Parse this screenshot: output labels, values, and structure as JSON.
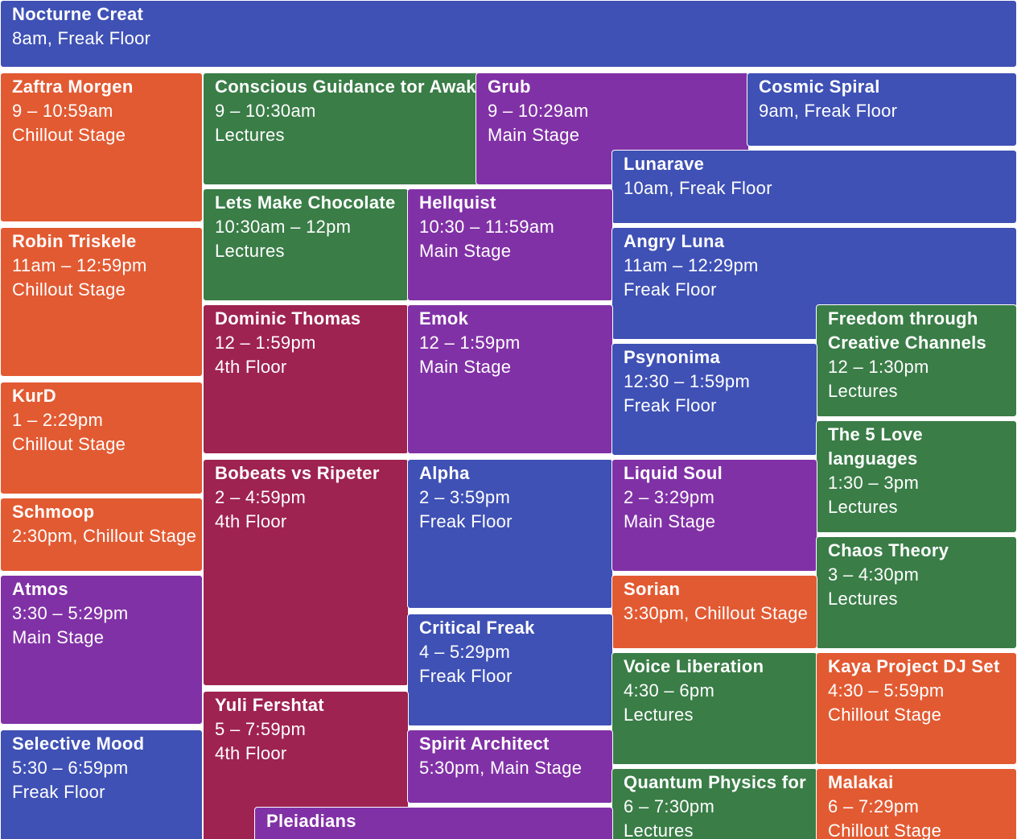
{
  "colors": {
    "freak_floor": "#3f51b5",
    "chillout_stage": "#e25a32",
    "lectures": "#3a7d47",
    "main_stage": "#8131a6",
    "fourth_floor": "#9e2350"
  },
  "events": {
    "nocturne": {
      "title": "Nocturne Creat",
      "line1": "8am, Freak Floor"
    },
    "zaftra": {
      "title": "Zaftra Morgen",
      "line1": "9 – 10:59am",
      "line2": "Chillout Stage"
    },
    "conscious": {
      "title": "Conscious Guidance tor Awak",
      "line1": "9 – 10:30am",
      "line2": "Lectures"
    },
    "grub": {
      "title": "Grub",
      "line1": "9 – 10:29am",
      "line2": "Main Stage"
    },
    "cosmic": {
      "title": "Cosmic Spiral",
      "line1": "9am, Freak Floor"
    },
    "lunarave": {
      "title": "Lunarave",
      "line1": "10am, Freak Floor"
    },
    "chocolate": {
      "title": "Lets Make Chocolate",
      "line1": "10:30am – 12pm",
      "line2": "Lectures"
    },
    "hellquist": {
      "title": "Hellquist",
      "line1": "10:30 – 11:59am",
      "line2": "Main Stage"
    },
    "robin": {
      "title": "Robin Triskele",
      "line1": "11am – 12:59pm",
      "line2": "Chillout Stage"
    },
    "angry_luna": {
      "title": "Angry Luna",
      "line1": "11am – 12:29pm",
      "line2": "Freak Floor"
    },
    "dominic": {
      "title": "Dominic Thomas",
      "line1": "12 – 1:59pm",
      "line2": "4th Floor"
    },
    "emok": {
      "title": "Emok",
      "line1": "12 – 1:59pm",
      "line2": "Main Stage"
    },
    "freedom": {
      "title": "Freedom through Creative Channels",
      "line1": "12 – 1:30pm",
      "line2": "Lectures"
    },
    "psynonima": {
      "title": "Psynonima",
      "line1": "12:30 – 1:59pm",
      "line2": "Freak Floor"
    },
    "kurd": {
      "title": "KurD",
      "line1": "1 – 2:29pm",
      "line2": "Chillout Stage"
    },
    "love_languages": {
      "title": "The 5 Love languages",
      "line1": "1:30 – 3pm",
      "line2": "Lectures"
    },
    "bobeats": {
      "title": "Bobeats vs Ripeter",
      "line1": "2 – 4:59pm",
      "line2": "4th Floor"
    },
    "alpha": {
      "title": "Alpha",
      "line1": "2 – 3:59pm",
      "line2": "Freak Floor"
    },
    "liquid_soul": {
      "title": "Liquid Soul",
      "line1": "2 – 3:29pm",
      "line2": "Main Stage"
    },
    "schmoop": {
      "title": "Schmoop",
      "line1": "2:30pm, Chillout Stage"
    },
    "chaos": {
      "title": "Chaos Theory",
      "line1": "3 – 4:30pm",
      "line2": "Lectures"
    },
    "atmos": {
      "title": "Atmos",
      "line1": "3:30 – 5:29pm",
      "line2": "Main Stage"
    },
    "sorian": {
      "title": "Sorian",
      "line1": "3:30pm, Chillout Stage"
    },
    "critical_freak": {
      "title": "Critical Freak",
      "line1": "4 – 5:29pm",
      "line2": "Freak Floor"
    },
    "voice": {
      "title": "Voice Liberation",
      "line1": "4:30 – 6pm",
      "line2": "Lectures"
    },
    "kaya": {
      "title": "Kaya Project DJ Set",
      "line1": "4:30 – 5:59pm",
      "line2": "Chillout Stage"
    },
    "yuli": {
      "title": "Yuli Fershtat",
      "line1": "5 – 7:59pm",
      "line2": "4th Floor"
    },
    "selective": {
      "title": "Selective Mood",
      "line1": "5:30 – 6:59pm",
      "line2": "Freak Floor"
    },
    "spirit": {
      "title": "Spirit Architect",
      "line1": "5:30pm, Main Stage"
    },
    "quantum": {
      "title": "Quantum Physics for",
      "line1": "6 – 7:30pm",
      "line2": "Lectures"
    },
    "malakai": {
      "title": "Malakai",
      "line1": "6 – 7:29pm",
      "line2": "Chillout Stage"
    },
    "pleiadians": {
      "title": "Pleiadians"
    }
  }
}
